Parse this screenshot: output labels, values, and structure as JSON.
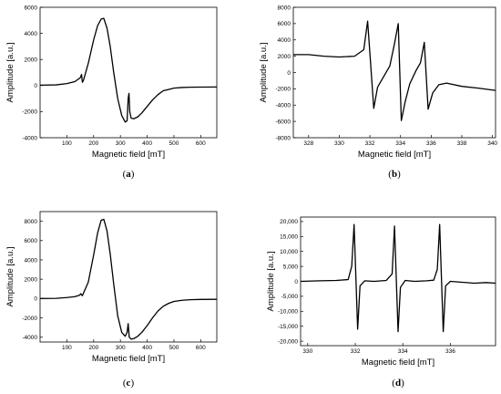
{
  "chart_data": [
    {
      "type": "line",
      "panel_label": "(a)",
      "panel_letter": "a",
      "xlabel": "Magnetic field [mT]",
      "ylabel": "Amplitude [a.u.]",
      "xlim": [
        0,
        660
      ],
      "ylim": [
        -4000,
        6000
      ],
      "xticks": [
        100,
        200,
        300,
        400,
        500,
        600
      ],
      "yticks": [
        -4000,
        -2000,
        0,
        2000,
        4000,
        6000
      ],
      "ytick_labels": [
        "-4000",
        "-2000",
        "0",
        "2000",
        "4000",
        "6000"
      ],
      "grid": false,
      "series": [
        {
          "x": [
            0,
            60,
            100,
            130,
            150,
            155,
            158,
            162,
            180,
            200,
            215,
            228,
            238,
            250,
            262,
            275,
            290,
            305,
            318,
            325,
            329,
            332,
            335,
            340,
            350,
            365,
            380,
            400,
            420,
            440,
            460,
            480,
            500,
            530,
            560,
            600,
            660
          ],
          "y": [
            30,
            50,
            150,
            300,
            600,
            850,
            250,
            400,
            1700,
            3500,
            4600,
            5100,
            5150,
            4400,
            3000,
            1000,
            -1000,
            -2300,
            -2800,
            -2700,
            -1000,
            -600,
            -2000,
            -2500,
            -2550,
            -2400,
            -2100,
            -1600,
            -1100,
            -700,
            -400,
            -300,
            -200,
            -150,
            -130,
            -120,
            -110
          ]
        }
      ]
    },
    {
      "type": "line",
      "panel_label": "(b)",
      "panel_letter": "b",
      "xlabel": "Magnetic field [mT]",
      "ylabel": "Amplitude [a.u.]",
      "xlim": [
        327,
        340.2
      ],
      "ylim": [
        -8000,
        8000
      ],
      "xticks": [
        328,
        330,
        332,
        334,
        336,
        338,
        340
      ],
      "yticks": [
        -8000,
        -6000,
        -4000,
        -2000,
        0,
        2000,
        4000,
        6000,
        8000
      ],
      "ytick_labels": [
        "-8000",
        "-6000",
        "-4000",
        "-2000",
        "0",
        "2000",
        "4000",
        "6000",
        "8000"
      ],
      "grid": false,
      "series": [
        {
          "x": [
            327,
            328,
            329,
            330,
            331,
            331.6,
            331.85,
            332.05,
            332.25,
            332.5,
            332.9,
            333.3,
            333.6,
            333.85,
            334.05,
            334.3,
            334.6,
            335.0,
            335.3,
            335.55,
            335.8,
            336.1,
            336.5,
            337,
            338,
            339,
            340.2
          ],
          "y": [
            2200,
            2200,
            2000,
            1900,
            2000,
            2800,
            6300,
            1000,
            -4400,
            -1800,
            -500,
            800,
            3500,
            6000,
            -5900,
            -3600,
            -1400,
            200,
            1200,
            3700,
            -4500,
            -2500,
            -1500,
            -1300,
            -1700,
            -1900,
            -2200
          ]
        }
      ]
    },
    {
      "type": "line",
      "panel_label": "(c)",
      "panel_letter": "c",
      "xlabel": "Magnetic field [mT]",
      "ylabel": "Amplitude [a.u.]",
      "xlim": [
        0,
        660
      ],
      "ylim": [
        -4500,
        9000
      ],
      "xticks": [
        100,
        200,
        300,
        400,
        500,
        600
      ],
      "yticks": [
        -4000,
        -2000,
        0,
        2000,
        4000,
        6000,
        8000
      ],
      "ytick_labels": [
        "-4000",
        "-2000",
        "0",
        "2000",
        "4000",
        "6000",
        "8000"
      ],
      "grid": false,
      "series": [
        {
          "x": [
            0,
            60,
            100,
            130,
            148,
            152,
            158,
            180,
            200,
            215,
            228,
            238,
            250,
            262,
            275,
            290,
            305,
            318,
            325,
            329,
            333,
            340,
            350,
            365,
            380,
            400,
            420,
            440,
            460,
            480,
            500,
            530,
            560,
            600,
            660
          ],
          "y": [
            0,
            20,
            100,
            200,
            350,
            500,
            300,
            1700,
            4500,
            6800,
            8100,
            8200,
            7000,
            4600,
            1500,
            -1800,
            -3500,
            -3900,
            -3500,
            -2600,
            -4000,
            -4200,
            -4150,
            -3900,
            -3500,
            -2800,
            -2000,
            -1300,
            -800,
            -500,
            -300,
            -180,
            -120,
            -90,
            -80
          ]
        }
      ]
    },
    {
      "type": "line",
      "panel_label": "(d)",
      "panel_letter": "d",
      "xlabel": "Magnetic field [mT]",
      "ylabel": "Amplitude [a.u.]",
      "xlim": [
        329.7,
        337.9
      ],
      "ylim": [
        -21500,
        21500
      ],
      "xticks": [
        330,
        332,
        334,
        336
      ],
      "yticks": [
        -20000,
        -15000,
        -10000,
        -5000,
        0,
        5000,
        10000,
        15000,
        20000
      ],
      "ytick_labels": [
        "-20,000",
        "-15,000",
        "-10,000",
        "-5,000",
        "0",
        "5,000",
        "10,000",
        "15,000",
        "20,000"
      ],
      "grid": false,
      "series": [
        {
          "x": [
            329.7,
            330.5,
            331.2,
            331.7,
            331.85,
            331.95,
            332.1,
            332.2,
            332.4,
            332.8,
            333.3,
            333.55,
            333.65,
            333.8,
            333.9,
            334.1,
            334.5,
            335.0,
            335.3,
            335.45,
            335.55,
            335.7,
            335.8,
            336.0,
            336.5,
            337.0,
            337.5,
            337.9
          ],
          "y": [
            0,
            200,
            300,
            600,
            5000,
            19000,
            -16000,
            -1500,
            200,
            0,
            300,
            2500,
            18500,
            -16800,
            -2000,
            300,
            0,
            200,
            400,
            4000,
            19000,
            -16800,
            -1500,
            0,
            -300,
            -600,
            -400,
            -600
          ]
        }
      ]
    }
  ]
}
